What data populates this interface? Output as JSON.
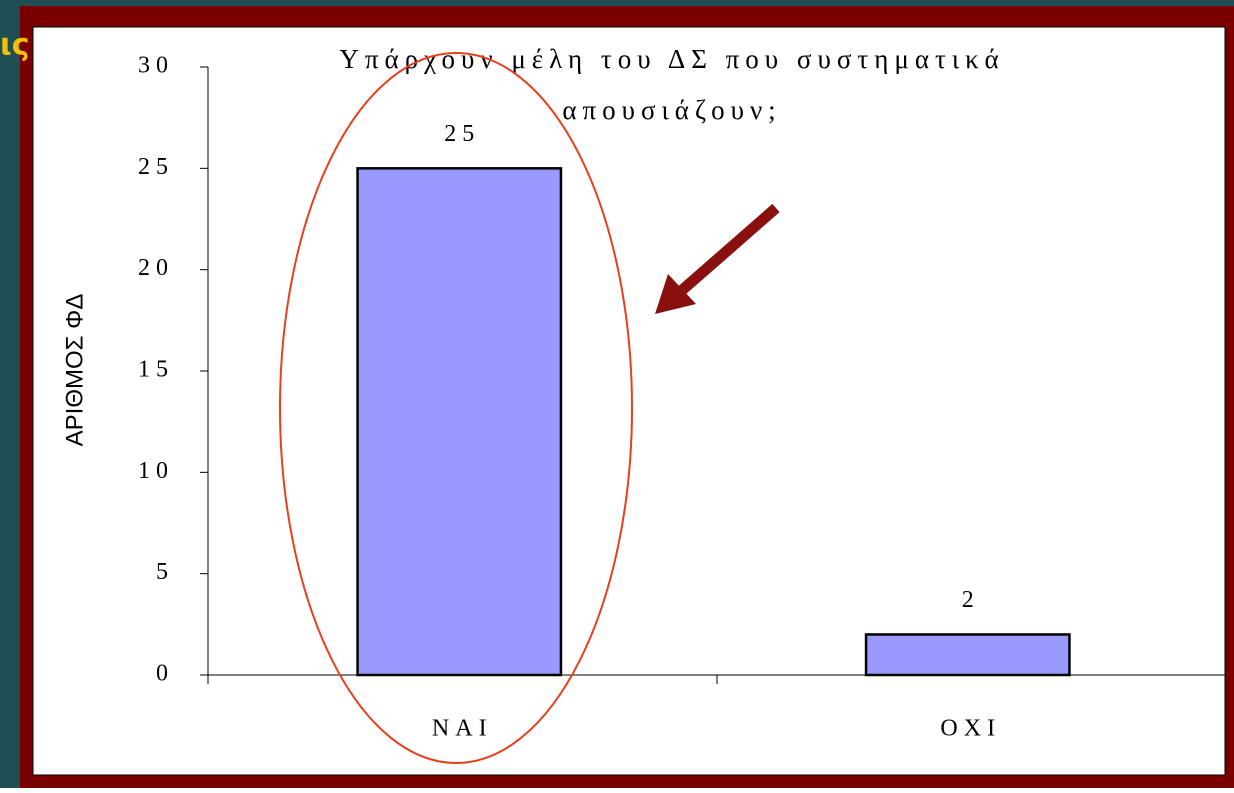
{
  "corner_text": "ις",
  "chart_data": {
    "type": "bar",
    "title": [
      "Υπάρχουν μέλη του ΔΣ που συστηματικά",
      "απουσιάζουν;"
    ],
    "y_label": "ΑΡΙΘΜΟΣ ΦΔ",
    "categories": [
      "ΝΑΙ",
      "ΟΧΙ"
    ],
    "values": [
      25,
      2
    ],
    "color": "#9999ff",
    "ylim": [
      0,
      30
    ],
    "yticks": [
      0,
      5,
      10,
      15,
      20,
      25,
      30
    ],
    "grid": false
  }
}
